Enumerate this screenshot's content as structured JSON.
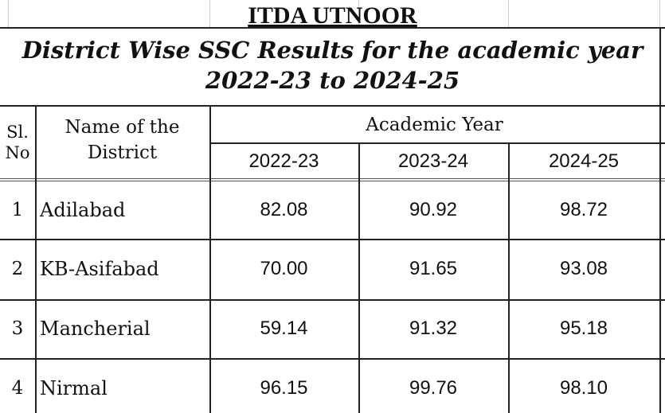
{
  "header": {
    "title": "ITDA UTNOOR",
    "subtitle_lines": [
      "District Wise SSC Results for the academic year",
      "2022-23 to 2024-25"
    ]
  },
  "table": {
    "columns": {
      "sl_no": "Sl. No",
      "district": "Name of the District",
      "group": "Academic Year",
      "years": [
        "2022-23",
        "2023-24",
        "2024-25"
      ]
    },
    "rows": [
      [
        "1",
        "Adilabad",
        "82.08",
        "90.92",
        "98.72"
      ],
      [
        "2",
        "KB-Asifabad",
        "70.00",
        "91.65",
        "93.08"
      ],
      [
        "3",
        "Mancherial",
        "59.14",
        "91.32",
        "95.18"
      ],
      [
        "4",
        "Nirmal",
        "96.15",
        "99.76",
        "98.10"
      ]
    ]
  }
}
